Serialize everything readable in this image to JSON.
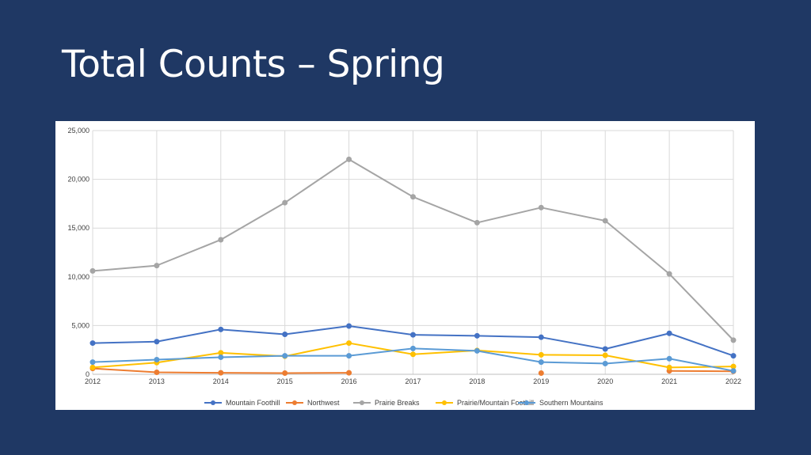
{
  "slide": {
    "title": "Total Counts – Spring"
  },
  "chart_data": {
    "type": "line",
    "title": "",
    "xlabel": "",
    "ylabel": "",
    "ylim": [
      0,
      25000
    ],
    "yticks": [
      0,
      5000,
      10000,
      15000,
      20000,
      25000
    ],
    "ytick_labels": [
      "0",
      "5,000",
      "10,000",
      "15,000",
      "20,000",
      "25,000"
    ],
    "x": [
      "2012",
      "2013",
      "2014",
      "2015",
      "2016",
      "2017",
      "2018",
      "2019",
      "2020",
      "2021",
      "2022"
    ],
    "grid": true,
    "legend_position": "bottom",
    "series": [
      {
        "name": "Mountain Foothill",
        "color": "#4472c4",
        "values": [
          3200,
          3350,
          4600,
          4100,
          4950,
          4050,
          3950,
          3800,
          2600,
          4200,
          1900
        ]
      },
      {
        "name": "Northwest",
        "color": "#ed7d31",
        "values": [
          600,
          200,
          150,
          120,
          150,
          null,
          null,
          120,
          null,
          350,
          300
        ]
      },
      {
        "name": "Prairie Breaks",
        "color": "#a5a5a5",
        "values": [
          10600,
          11150,
          13800,
          17600,
          22050,
          18200,
          15550,
          17100,
          15750,
          10300,
          3500
        ]
      },
      {
        "name": "Prairie/Mountain Foothill",
        "color": "#ffc000",
        "values": [
          700,
          1200,
          2200,
          1850,
          3200,
          2050,
          2450,
          2000,
          1950,
          700,
          800
        ]
      },
      {
        "name": "Southern Mountains",
        "color": "#5b9bd5",
        "values": [
          1250,
          1500,
          1750,
          1900,
          1900,
          2650,
          2400,
          1250,
          1100,
          1600,
          350
        ]
      }
    ]
  }
}
